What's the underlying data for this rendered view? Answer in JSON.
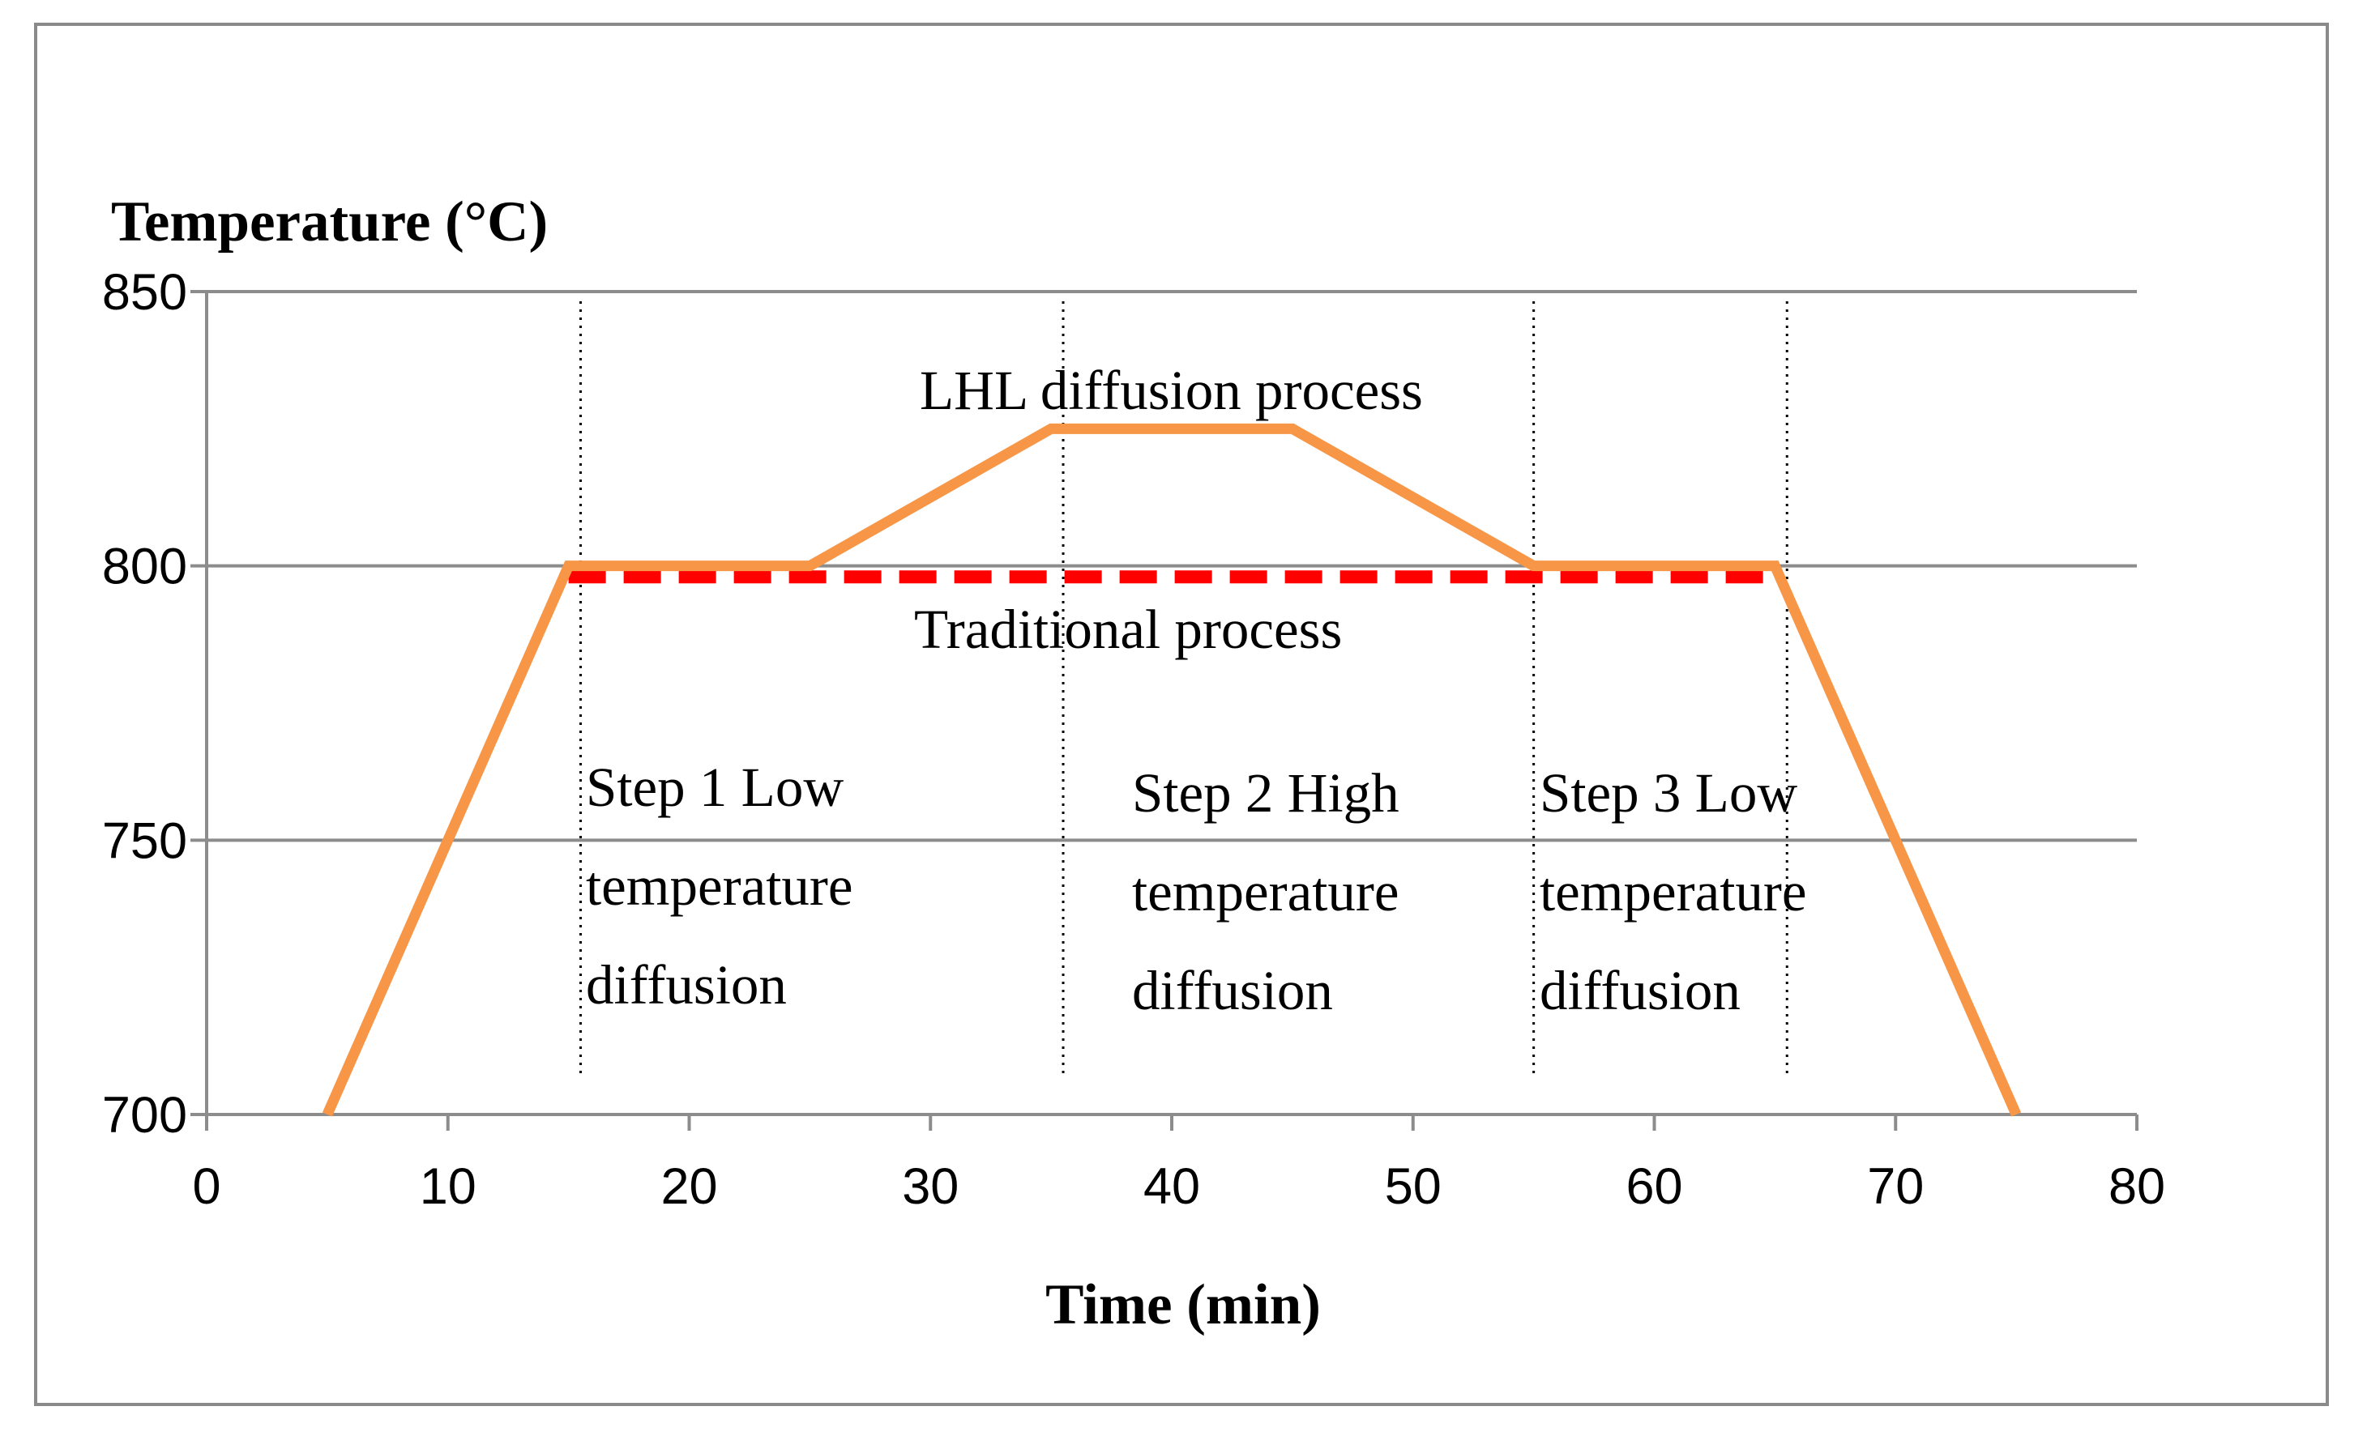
{
  "chart_data": {
    "type": "line",
    "title": "",
    "ylabel": "Temperature (°C)",
    "xlabel": "Time (min)",
    "xlim": [
      0,
      80
    ],
    "ylim": [
      700,
      850
    ],
    "x_ticks": [
      "0",
      "10",
      "20",
      "30",
      "40",
      "50",
      "60",
      "70",
      "80"
    ],
    "y_ticks": [
      "700",
      "750",
      "800",
      "850"
    ],
    "x_tick_values": [
      0,
      10,
      20,
      30,
      40,
      50,
      60,
      70,
      80
    ],
    "y_tick_values": [
      700,
      750,
      800,
      850
    ],
    "grid": "horizontal",
    "colors": {
      "lhl": "#f79646",
      "traditional": "#ff0000",
      "grid": "#8c8c8c",
      "axis": "#8c8c8c",
      "frame": "#8a8a8a"
    },
    "series": [
      {
        "name": "LHL diffusion process",
        "style": "solid",
        "x": [
          5,
          15,
          25,
          35,
          45,
          55,
          65,
          75
        ],
        "y": [
          700,
          800,
          800,
          825,
          825,
          800,
          800,
          700
        ]
      },
      {
        "name": "Traditional process",
        "style": "dashed",
        "x": [
          15,
          65
        ],
        "y": [
          798,
          798
        ]
      }
    ],
    "step_dividers_x": [
      15.5,
      35.5,
      55,
      65.5
    ],
    "annotations": {
      "lhl_label": "LHL diffusion process",
      "traditional_label": "Traditional process",
      "step1": [
        "Step 1 Low",
        "temperature",
        "diffusion"
      ],
      "step2": [
        "Step 2 High",
        "temperature",
        "diffusion"
      ],
      "step3": [
        "Step 3 Low",
        "temperature",
        "diffusion"
      ]
    }
  }
}
